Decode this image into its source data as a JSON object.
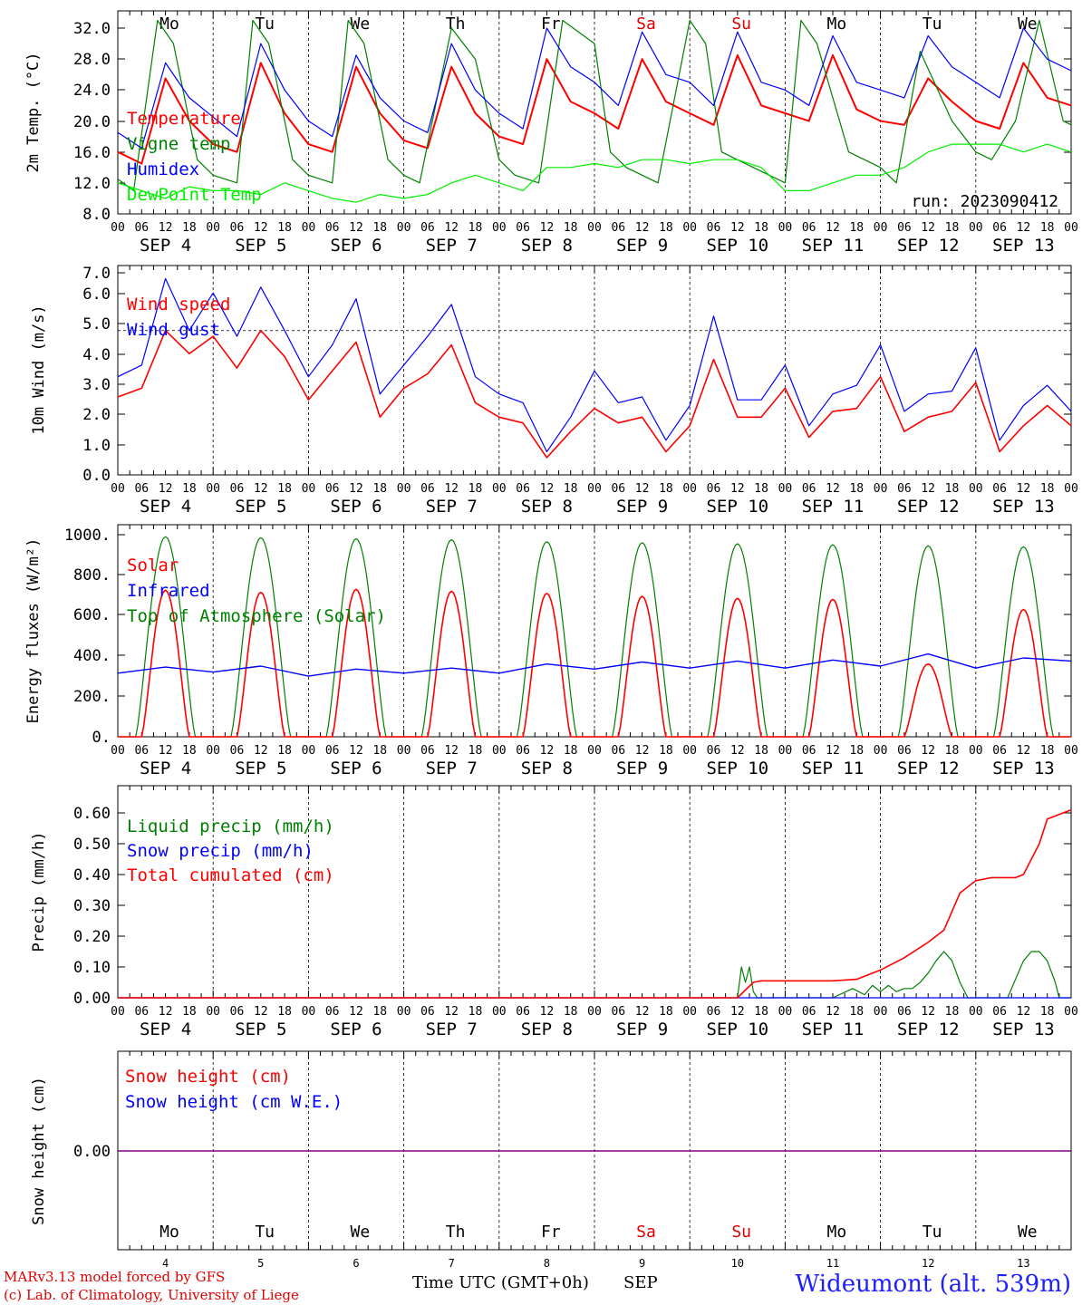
{
  "footer": {
    "model": "MARv3.13 model forced by GFS",
    "lab": "(c) Lab. of Climatology, University of Liege",
    "time_axis": "Time UTC (GMT+0h)",
    "month": "SEP",
    "station": "Wideumont (alt. 539m)",
    "day_numbers": [
      "4",
      "5",
      "6",
      "7",
      "8",
      "9",
      "10",
      "11",
      "12",
      "13"
    ]
  },
  "days": {
    "dates": [
      "SEP  4",
      "SEP  5",
      "SEP  6",
      "SEP  7",
      "SEP  8",
      "SEP  9",
      "SEP 10",
      "SEP 11",
      "SEP 12",
      "SEP 13"
    ],
    "weekdays": [
      "Mo",
      "Tu",
      "We",
      "Th",
      "Fr",
      "Sa",
      "Su",
      "Mo",
      "Tu",
      "We"
    ],
    "weekend_color": "#e00000",
    "hour_ticks": [
      "00",
      "06",
      "12",
      "18"
    ],
    "final_hour": "00"
  },
  "colors": {
    "red": "#ff0000",
    "green": "#008000",
    "blue": "#0000ff",
    "lightgreen": "#00ee00",
    "purple": "#800080"
  },
  "chart_data": [
    {
      "type": "line",
      "ylabel": "2m Temp. (°C)",
      "ylim": [
        8,
        34
      ],
      "yticks": [
        "8.0",
        "12.0",
        "16.0",
        "20.0",
        "24.0",
        "28.0",
        "32.0"
      ],
      "annotation": "run: 2023090412",
      "x_unit": "hours since SEP 4 00 UTC",
      "series": [
        {
          "name": "Temperature",
          "color": "#ff0000",
          "x": [
            0,
            6,
            12,
            18,
            24,
            30,
            36,
            42,
            48,
            54,
            60,
            66,
            72,
            78,
            84,
            90,
            96,
            102,
            108,
            114,
            120,
            126,
            132,
            138,
            144,
            150,
            156,
            162,
            168,
            174,
            180,
            186,
            192,
            198,
            204,
            210,
            216,
            222,
            228,
            234,
            240
          ],
          "y": [
            16,
            14.5,
            25.5,
            20,
            17,
            16,
            27.5,
            21,
            17,
            16,
            27,
            21,
            17.5,
            16.5,
            27,
            21,
            18,
            17,
            28,
            22.5,
            21,
            19,
            28,
            22.5,
            21,
            19.5,
            28.5,
            22,
            21,
            20,
            28.5,
            21.5,
            20,
            19.5,
            25.5,
            22.5,
            20,
            19,
            27.5,
            23,
            22
          ]
        },
        {
          "name": "Vigne temp",
          "color": "#008000",
          "x": [
            0,
            4,
            10,
            14,
            20,
            24,
            30,
            34,
            38,
            44,
            48,
            54,
            58,
            62,
            68,
            72,
            76,
            84,
            90,
            96,
            100,
            106,
            112,
            120,
            124,
            128,
            136,
            144,
            148,
            152,
            160,
            168,
            172,
            176,
            184,
            192,
            196,
            202,
            210,
            216,
            220,
            226,
            232,
            238,
            240
          ],
          "y": [
            12.5,
            11,
            33,
            30,
            15,
            13,
            12,
            33,
            30,
            15,
            13,
            12,
            33,
            30,
            15,
            13,
            12,
            32,
            28,
            15,
            13,
            12,
            33,
            30,
            16,
            14,
            12,
            33,
            30,
            16,
            14,
            12,
            33,
            30,
            16,
            14,
            12,
            29,
            20,
            16,
            15,
            20,
            33,
            20,
            19.5
          ]
        },
        {
          "name": "Humidex",
          "color": "#0000ff",
          "x": [
            0,
            6,
            12,
            18,
            24,
            30,
            36,
            42,
            48,
            54,
            60,
            66,
            72,
            78,
            84,
            90,
            96,
            102,
            108,
            114,
            120,
            126,
            132,
            138,
            144,
            150,
            156,
            162,
            168,
            174,
            180,
            186,
            192,
            198,
            204,
            210,
            216,
            222,
            228,
            234,
            240
          ],
          "y": [
            18.5,
            16.5,
            27.5,
            23,
            20.5,
            18,
            30,
            24,
            20,
            18,
            28.5,
            23,
            20,
            18.5,
            30,
            24,
            21,
            19,
            32,
            27,
            25,
            22,
            31.5,
            26,
            25,
            22,
            31.5,
            25,
            24,
            22,
            31,
            25,
            24,
            23,
            31,
            27,
            25,
            23,
            32,
            28,
            26.5
          ]
        },
        {
          "name": "DewPoint Temp",
          "color": "#00ee00",
          "x": [
            0,
            6,
            12,
            18,
            24,
            30,
            36,
            42,
            48,
            54,
            60,
            66,
            72,
            78,
            84,
            90,
            96,
            102,
            108,
            114,
            120,
            126,
            132,
            138,
            144,
            150,
            156,
            162,
            168,
            174,
            180,
            186,
            192,
            198,
            204,
            210,
            216,
            222,
            228,
            234,
            240
          ],
          "y": [
            12,
            11,
            10,
            11.5,
            11,
            11,
            10.5,
            12,
            11,
            10,
            9.5,
            10.5,
            10,
            10.5,
            12,
            13,
            12,
            11,
            14,
            14,
            14.5,
            14,
            15,
            15,
            14.5,
            15,
            15,
            14,
            11,
            11,
            12,
            13,
            13,
            14,
            16,
            17,
            17,
            17,
            16,
            17,
            16
          ]
        }
      ]
    },
    {
      "type": "line",
      "ylabel": "10m Wind (m/s)",
      "ylim": [
        0,
        7
      ],
      "yticks": [
        "0.0",
        "1.0",
        "2.0",
        "3.0",
        "4.0",
        "5.0",
        "6.0",
        "7.0"
      ],
      "reference_line": 5.0,
      "series": [
        {
          "name": "Wind speed",
          "color": "#ff0000",
          "x": [
            0,
            6,
            12,
            18,
            24,
            30,
            36,
            42,
            48,
            54,
            60,
            66,
            72,
            78,
            84,
            90,
            96,
            102,
            108,
            114,
            120,
            126,
            132,
            138,
            144,
            150,
            156,
            162,
            168,
            174,
            180,
            186,
            192,
            198,
            204,
            210,
            216,
            222,
            228,
            234,
            240
          ],
          "y": [
            2.7,
            3,
            5,
            4.2,
            4.8,
            3.7,
            5,
            4.1,
            2.6,
            3.6,
            4.6,
            2,
            3,
            3.5,
            4.5,
            2.5,
            2,
            1.8,
            0.6,
            1.5,
            2.3,
            1.8,
            2,
            0.8,
            1.7,
            4,
            2,
            2,
            3,
            1.3,
            2.2,
            2.3,
            3.4,
            1.5,
            2,
            2.2,
            3.2,
            0.8,
            1.7,
            2.4,
            1.7
          ]
        },
        {
          "name": "Wind gust",
          "color": "#0000ff",
          "x": [
            0,
            6,
            12,
            18,
            24,
            30,
            36,
            42,
            48,
            54,
            60,
            66,
            72,
            78,
            84,
            90,
            96,
            102,
            108,
            114,
            120,
            126,
            132,
            138,
            144,
            150,
            156,
            162,
            168,
            174,
            180,
            186,
            192,
            198,
            204,
            210,
            216,
            222,
            228,
            234,
            240
          ],
          "y": [
            3.4,
            3.8,
            6.8,
            5,
            6.3,
            4.8,
            6.5,
            5,
            3.4,
            4.5,
            6.1,
            2.8,
            3.8,
            4.8,
            5.9,
            3.4,
            2.8,
            2.5,
            0.8,
            2,
            3.6,
            2.5,
            2.7,
            1.2,
            2.4,
            5.5,
            2.6,
            2.6,
            3.8,
            1.7,
            2.8,
            3.1,
            4.5,
            2.2,
            2.8,
            2.9,
            4.4,
            1.2,
            2.4,
            3.1,
            2.2
          ]
        }
      ]
    },
    {
      "type": "line",
      "ylabel": "Energy fluxes (W/m²)",
      "ylim": [
        0,
        1000
      ],
      "yticks": [
        "0.",
        "200.",
        "400.",
        "600.",
        "800.",
        "1000."
      ],
      "series": [
        {
          "name": "Solar",
          "color": "#ff0000",
          "peaks": [
            725,
            715,
            730,
            720,
            710,
            695,
            685,
            680,
            360,
            630
          ]
        },
        {
          "name": "Infrared",
          "color": "#0000ff",
          "x": [
            0,
            12,
            24,
            36,
            48,
            60,
            72,
            84,
            96,
            108,
            120,
            132,
            144,
            156,
            168,
            180,
            192,
            204,
            216,
            228,
            240
          ],
          "y": [
            315,
            345,
            320,
            350,
            300,
            335,
            315,
            340,
            315,
            360,
            335,
            370,
            340,
            375,
            340,
            380,
            350,
            410,
            340,
            390,
            375
          ]
        },
        {
          "name": "Top of Atmosphere (Solar)",
          "color": "#008000",
          "peaks": [
            990,
            985,
            980,
            975,
            965,
            960,
            955,
            950,
            945,
            940
          ]
        }
      ]
    },
    {
      "type": "line",
      "ylabel": "Precip (mm/h)",
      "ylim": [
        0,
        0.65
      ],
      "yticks": [
        "0.00",
        "0.10",
        "0.20",
        "0.30",
        "0.40",
        "0.50",
        "0.60"
      ],
      "series": [
        {
          "name": "Liquid precip (mm/h)",
          "color": "#008000",
          "x": [
            0,
            156,
            157,
            158,
            159,
            160,
            161,
            162,
            168,
            180,
            185,
            188,
            190,
            192,
            194,
            196,
            198,
            200,
            202,
            204,
            206,
            208,
            210,
            212,
            214,
            216,
            218,
            220,
            224,
            228,
            230,
            232,
            234,
            236,
            237,
            238,
            240
          ],
          "y": [
            0,
            0,
            0.1,
            0.05,
            0.1,
            0.02,
            0,
            0,
            0,
            0,
            0.03,
            0.01,
            0.04,
            0.02,
            0.04,
            0.02,
            0.03,
            0.03,
            0.05,
            0.08,
            0.12,
            0.15,
            0.12,
            0.05,
            0,
            0,
            0,
            0,
            0,
            0.12,
            0.15,
            0.15,
            0.12,
            0.05,
            0,
            0,
            0
          ]
        },
        {
          "name": "Snow precip (mm/h)",
          "color": "#0000ff",
          "x": [
            0,
            240
          ],
          "y": [
            0,
            0
          ]
        },
        {
          "name": "Total cumulated (cm)",
          "color": "#ff0000",
          "x": [
            0,
            156,
            160,
            162,
            168,
            180,
            186,
            192,
            198,
            204,
            208,
            212,
            216,
            220,
            226,
            228,
            232,
            234,
            240
          ],
          "y": [
            0,
            0,
            0.05,
            0.055,
            0.055,
            0.055,
            0.06,
            0.09,
            0.13,
            0.18,
            0.22,
            0.34,
            0.38,
            0.39,
            0.39,
            0.4,
            0.5,
            0.58,
            0.61
          ]
        }
      ]
    },
    {
      "type": "line",
      "ylabel": "Snow height (cm)",
      "yticks": [
        "0.00"
      ],
      "series": [
        {
          "name": "Snow height (cm)",
          "color": "#ff0000",
          "x": [
            0,
            240
          ],
          "y": [
            0,
            0
          ]
        },
        {
          "name": "Snow height (cm W.E.)",
          "color": "#0000ff",
          "x": [
            0,
            240
          ],
          "y": [
            0,
            0
          ]
        }
      ]
    }
  ]
}
